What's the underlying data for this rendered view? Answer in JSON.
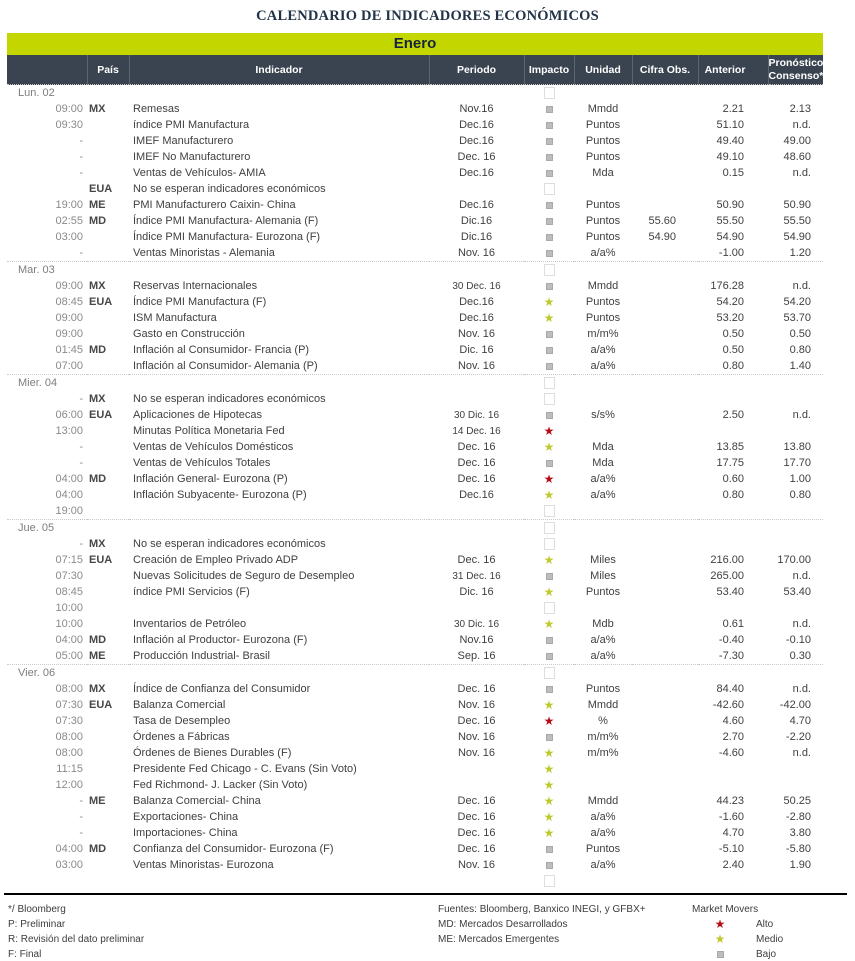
{
  "title": "CALENDARIO DE INDICADORES ECONÓMICOS",
  "month": "Enero",
  "colors": {
    "accent_green": "#c3d600",
    "header_bg": "#3a4450",
    "title_navy": "#223348",
    "impact_high": "#b60d1b",
    "impact_medium": "#bfc92f",
    "impact_low": "#bdbdbd"
  },
  "columns": {
    "hora": "",
    "pais": "País",
    "indicador": "Indicador",
    "periodo": "Periodo",
    "impacto": "Impacto",
    "unidad": "Unidad",
    "cifra": "Cifra Obs.",
    "anterior": "Anterior",
    "pronostico_line1": "Pronóstico",
    "pronostico_line2": "Consenso*"
  },
  "days": [
    {
      "label": "Lun. 02",
      "rows": [
        {
          "hora": "09:00",
          "pais": "MX",
          "indicador": "Remesas",
          "periodo": "Nov.16",
          "impacto": "low",
          "unidad": "Mmdd",
          "cifra": "",
          "anterior": "2.21",
          "pronostico": "2.13"
        },
        {
          "hora": "09:30",
          "pais": "",
          "indicador": "índice PMI Manufactura",
          "periodo": "Dec.16",
          "impacto": "low",
          "unidad": "Puntos",
          "cifra": "",
          "anterior": "51.10",
          "pronostico": "n.d."
        },
        {
          "hora": "-",
          "pais": "",
          "indicador": "IMEF Manufacturero",
          "periodo": "Dec.16",
          "impacto": "low",
          "unidad": "Puntos",
          "cifra": "",
          "anterior": "49.40",
          "pronostico": "49.00"
        },
        {
          "hora": "-",
          "pais": "",
          "indicador": "IMEF No Manufacturero",
          "periodo": "Dec. 16",
          "impacto": "low",
          "unidad": "Puntos",
          "cifra": "",
          "anterior": "49.10",
          "pronostico": "48.60"
        },
        {
          "hora": "-",
          "pais": "",
          "indicador": "Ventas de Vehículos- AMIA",
          "periodo": "Dec.16",
          "impacto": "low",
          "unidad": "Mda",
          "cifra": "",
          "anterior": "0.15",
          "pronostico": "n.d."
        },
        {
          "hora": "",
          "pais": "EUA",
          "indicador": "No se esperan indicadores económicos",
          "periodo": "",
          "impacto": "none",
          "unidad": "",
          "cifra": "",
          "anterior": "",
          "pronostico": ""
        },
        {
          "hora": "19:00",
          "pais": "ME",
          "indicador": "PMI Manufacturero Caixin- China",
          "periodo": "Dec.16",
          "impacto": "low",
          "unidad": "Puntos",
          "cifra": "",
          "anterior": "50.90",
          "pronostico": "50.90"
        },
        {
          "hora": "02:55",
          "pais": "MD",
          "indicador": "Índice PMI Manufactura- Alemania (F)",
          "periodo": "Dic.16",
          "impacto": "low",
          "unidad": "Puntos",
          "cifra": "55.60",
          "anterior": "55.50",
          "pronostico": "55.50"
        },
        {
          "hora": "03:00",
          "pais": "",
          "indicador": "Índice PMI Manufactura- Eurozona (F)",
          "periodo": "Dic.16",
          "impacto": "low",
          "unidad": "Puntos",
          "cifra": "54.90",
          "anterior": "54.90",
          "pronostico": "54.90"
        },
        {
          "hora": "-",
          "pais": "",
          "indicador": "Ventas Minoristas - Alemania",
          "periodo": "Nov. 16",
          "impacto": "low",
          "unidad": "a/a%",
          "cifra": "",
          "anterior": "-1.00",
          "pronostico": "1.20"
        }
      ]
    },
    {
      "label": "Mar. 03",
      "rows": [
        {
          "hora": "09:00",
          "pais": "MX",
          "indicador": "Reservas Internacionales",
          "periodo": "30 Dec. 16",
          "impacto": "low",
          "unidad": "Mmdd",
          "cifra": "",
          "anterior": "176.28",
          "pronostico": "n.d."
        },
        {
          "hora": "08:45",
          "pais": "EUA",
          "indicador": "Índice PMI Manufactura (F)",
          "periodo": "Dec.16",
          "impacto": "medium",
          "unidad": "Puntos",
          "cifra": "",
          "anterior": "54.20",
          "pronostico": "54.20"
        },
        {
          "hora": "09:00",
          "pais": "",
          "indicador": "ISM Manufactura",
          "periodo": "Dec.16",
          "impacto": "medium",
          "unidad": "Puntos",
          "cifra": "",
          "anterior": "53.20",
          "pronostico": "53.70"
        },
        {
          "hora": "09:00",
          "pais": "",
          "indicador": "Gasto en Construcción",
          "periodo": "Nov. 16",
          "impacto": "low",
          "unidad": "m/m%",
          "cifra": "",
          "anterior": "0.50",
          "pronostico": "0.50"
        },
        {
          "hora": "01:45",
          "pais": "MD",
          "indicador": "Inflación al Consumidor- Francia (P)",
          "periodo": "Dic. 16",
          "impacto": "low",
          "unidad": "a/a%",
          "cifra": "",
          "anterior": "0.50",
          "pronostico": "0.80"
        },
        {
          "hora": "07:00",
          "pais": "",
          "indicador": "Inflación al Consumidor- Alemania (P)",
          "periodo": "Nov. 16",
          "impacto": "low",
          "unidad": "a/a%",
          "cifra": "",
          "anterior": "0.80",
          "pronostico": "1.40"
        }
      ]
    },
    {
      "label": "Mier. 04",
      "rows": [
        {
          "hora": "-",
          "pais": "MX",
          "indicador": "No se esperan indicadores económicos",
          "periodo": "",
          "impacto": "none",
          "unidad": "",
          "cifra": "",
          "anterior": "",
          "pronostico": ""
        },
        {
          "hora": "06:00",
          "pais": "EUA",
          "indicador": "Aplicaciones de Hipotecas",
          "periodo": "30 Dic. 16",
          "impacto": "low",
          "unidad": "s/s%",
          "cifra": "",
          "anterior": "2.50",
          "pronostico": "n.d."
        },
        {
          "hora": "13:00",
          "pais": "",
          "indicador": "Minutas Política Monetaria Fed",
          "periodo": "14 Dec. 16",
          "impacto": "high",
          "unidad": "",
          "cifra": "",
          "anterior": "",
          "pronostico": ""
        },
        {
          "hora": "-",
          "pais": "",
          "indicador": "Ventas de Vehículos Domésticos",
          "periodo": "Dec. 16",
          "impacto": "medium",
          "unidad": "Mda",
          "cifra": "",
          "anterior": "13.85",
          "pronostico": "13.80"
        },
        {
          "hora": "-",
          "pais": "",
          "indicador": "Ventas de Vehículos Totales",
          "periodo": "Dec. 16",
          "impacto": "low",
          "unidad": "Mda",
          "cifra": "",
          "anterior": "17.75",
          "pronostico": "17.70"
        },
        {
          "hora": "04:00",
          "pais": "MD",
          "indicador": "Inflación General- Eurozona (P)",
          "periodo": "Dec. 16",
          "impacto": "high",
          "unidad": "a/a%",
          "cifra": "",
          "anterior": "0.60",
          "pronostico": "1.00"
        },
        {
          "hora": "04:00",
          "pais": "",
          "indicador": "Inflación Subyacente- Eurozona (P)",
          "periodo": "Dec.16",
          "impacto": "medium",
          "unidad": "a/a%",
          "cifra": "",
          "anterior": "0.80",
          "pronostico": "0.80"
        },
        {
          "hora": "19:00",
          "pais": "",
          "indicador": "",
          "periodo": "",
          "impacto": "none",
          "unidad": "",
          "cifra": "",
          "anterior": "",
          "pronostico": ""
        }
      ]
    },
    {
      "label": "Jue. 05",
      "rows": [
        {
          "hora": "-",
          "pais": "MX",
          "indicador": "No se esperan indicadores económicos",
          "periodo": "",
          "impacto": "none",
          "unidad": "",
          "cifra": "",
          "anterior": "",
          "pronostico": ""
        },
        {
          "hora": "07:15",
          "pais": "EUA",
          "indicador": "Creación de Empleo Privado ADP",
          "periodo": "Dec. 16",
          "impacto": "medium",
          "unidad": "Miles",
          "cifra": "",
          "anterior": "216.00",
          "pronostico": "170.00"
        },
        {
          "hora": "07:30",
          "pais": "",
          "indicador": "Nuevas Solicitudes de Seguro de Desempleo",
          "periodo": "31 Dec. 16",
          "impacto": "low",
          "unidad": "Miles",
          "cifra": "",
          "anterior": "265.00",
          "pronostico": "n.d."
        },
        {
          "hora": "08:45",
          "pais": "",
          "indicador": "índice PMI Servicios (F)",
          "periodo": "Dic. 16",
          "impacto": "medium",
          "unidad": "Puntos",
          "cifra": "",
          "anterior": "53.40",
          "pronostico": "53.40"
        },
        {
          "hora": "10:00",
          "pais": "",
          "indicador": "",
          "periodo": "",
          "impacto": "none",
          "unidad": "",
          "cifra": "",
          "anterior": "",
          "pronostico": ""
        },
        {
          "hora": "10:00",
          "pais": "",
          "indicador": "Inventarios de Petróleo",
          "periodo": "30 Dic. 16",
          "impacto": "medium",
          "unidad": "Mdb",
          "cifra": "",
          "anterior": "0.61",
          "pronostico": "n.d."
        },
        {
          "hora": "04:00",
          "pais": "MD",
          "indicador": "Inflación al Productor- Eurozona (F)",
          "periodo": "Nov.16",
          "impacto": "low",
          "unidad": "a/a%",
          "cifra": "",
          "anterior": "-0.40",
          "pronostico": "-0.10"
        },
        {
          "hora": "05:00",
          "pais": "ME",
          "indicador": "Producción Industrial- Brasil",
          "periodo": "Sep. 16",
          "impacto": "low",
          "unidad": "a/a%",
          "cifra": "",
          "anterior": "-7.30",
          "pronostico": "0.30"
        }
      ]
    },
    {
      "label": "Vier. 06",
      "rows": [
        {
          "hora": "08:00",
          "pais": "MX",
          "indicador": "Índice de Confianza del Consumidor",
          "periodo": "Dec. 16",
          "impacto": "low",
          "unidad": "Puntos",
          "cifra": "",
          "anterior": "84.40",
          "pronostico": "n.d."
        },
        {
          "hora": "07:30",
          "pais": "EUA",
          "indicador": "Balanza Comercial",
          "periodo": "Nov. 16",
          "impacto": "medium",
          "unidad": "Mmdd",
          "cifra": "",
          "anterior": "-42.60",
          "pronostico": "-42.00"
        },
        {
          "hora": "07:30",
          "pais": "",
          "indicador": "Tasa de Desempleo",
          "periodo": "Dec. 16",
          "impacto": "high",
          "unidad": "%",
          "cifra": "",
          "anterior": "4.60",
          "pronostico": "4.70"
        },
        {
          "hora": "08:00",
          "pais": "",
          "indicador": "Órdenes a Fábricas",
          "periodo": "Nov. 16",
          "impacto": "low",
          "unidad": "m/m%",
          "cifra": "",
          "anterior": "2.70",
          "pronostico": "-2.20"
        },
        {
          "hora": "08:00",
          "pais": "",
          "indicador": "Órdenes de Bienes Durables (F)",
          "periodo": "Nov. 16",
          "impacto": "medium",
          "unidad": "m/m%",
          "cifra": "",
          "anterior": "-4.60",
          "pronostico": "n.d."
        },
        {
          "hora": "11:15",
          "pais": "",
          "indicador": "Presidente Fed Chicago - C. Evans (Sin Voto)",
          "periodo": "",
          "impacto": "medium",
          "unidad": "",
          "cifra": "",
          "anterior": "",
          "pronostico": ""
        },
        {
          "hora": "12:00",
          "pais": "",
          "indicador": "Fed Richmond- J. Lacker (Sin Voto)",
          "periodo": "",
          "impacto": "medium",
          "unidad": "",
          "cifra": "",
          "anterior": "",
          "pronostico": ""
        },
        {
          "hora": "-",
          "pais": "ME",
          "indicador": "Balanza Comercial- China",
          "periodo": "Dec. 16",
          "impacto": "medium",
          "unidad": "Mmdd",
          "cifra": "",
          "anterior": "44.23",
          "pronostico": "50.25"
        },
        {
          "hora": "-",
          "pais": "",
          "indicador": "Exportaciones- China",
          "periodo": "Dec. 16",
          "impacto": "medium",
          "unidad": "a/a%",
          "cifra": "",
          "anterior": "-1.60",
          "pronostico": "-2.80"
        },
        {
          "hora": "-",
          "pais": "",
          "indicador": "Importaciones- China",
          "periodo": "Dec. 16",
          "impacto": "medium",
          "unidad": "a/a%",
          "cifra": "",
          "anterior": "4.70",
          "pronostico": "3.80"
        },
        {
          "hora": "04:00",
          "pais": "MD",
          "indicador": "Confianza del Consumidor- Eurozona (F)",
          "periodo": "Dec. 16",
          "impacto": "low",
          "unidad": "Puntos",
          "cifra": "",
          "anterior": "-5.10",
          "pronostico": "-5.80"
        },
        {
          "hora": "03:00",
          "pais": "",
          "indicador": "Ventas Minoristas- Eurozona",
          "periodo": "Nov. 16",
          "impacto": "low",
          "unidad": "a/a%",
          "cifra": "",
          "anterior": "2.40",
          "pronostico": "1.90"
        },
        {
          "hora": "",
          "pais": "",
          "indicador": "",
          "periodo": "",
          "impacto": "none",
          "unidad": "",
          "cifra": "",
          "anterior": "",
          "pronostico": ""
        }
      ]
    }
  ],
  "footer": {
    "left": [
      "*/ Bloomberg",
      "P: Preliminar",
      "R: Revisión del dato preliminar",
      "F: Final"
    ],
    "middle": [
      "Fuentes: Bloomberg, Banxico INEGI, y GFBX+",
      "MD: Mercados Desarrollados",
      "ME: Mercados Emergentes"
    ],
    "legend_title": "Market Movers",
    "legend": [
      {
        "impacto": "high",
        "label": "Alto"
      },
      {
        "impacto": "medium",
        "label": "Medio"
      },
      {
        "impacto": "low",
        "label": "Bajo"
      }
    ]
  }
}
